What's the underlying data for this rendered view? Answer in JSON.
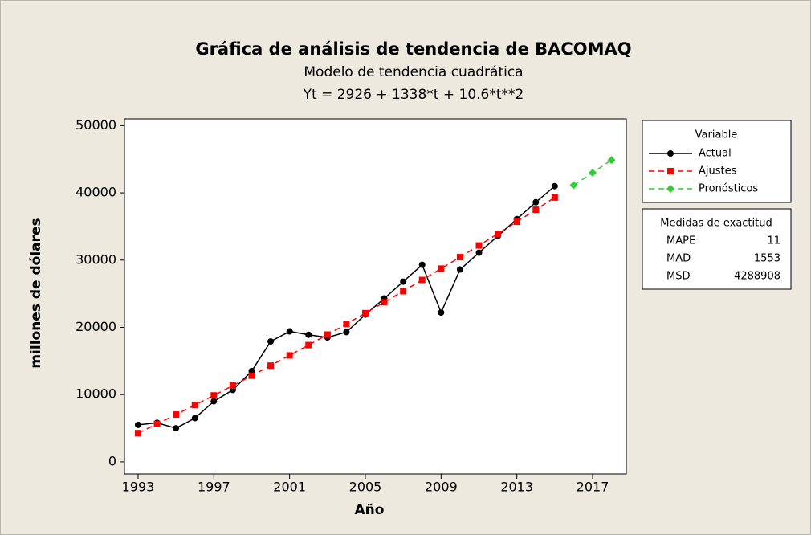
{
  "chart_data": {
    "type": "line",
    "title": "Gráfica de análisis de tendencia de BACOMAQ",
    "subtitle": "Modelo de tendencia cuadrática",
    "equation": "Yt = 2926 + 1338*t + 10.6*t**2",
    "xlabel": "Año",
    "ylabel": "millones de dólares",
    "xlim": [
      1992.28,
      2018.78
    ],
    "xticks": [
      1993,
      1997,
      2001,
      2005,
      2009,
      2013,
      2017
    ],
    "ylim": [
      -1800,
      51000
    ],
    "yticks": [
      0,
      10000,
      20000,
      30000,
      40000,
      50000
    ],
    "legend_title": "Variable",
    "legend_position": "right",
    "series": [
      {
        "name": "Actual",
        "color": "#000000",
        "marker": "circle",
        "line_style": "solid",
        "x": [
          1993,
          1994,
          1995,
          1996,
          1997,
          1998,
          1999,
          2000,
          2001,
          2002,
          2003,
          2004,
          2005,
          2006,
          2007,
          2008,
          2009,
          2010,
          2011,
          2012,
          2013,
          2014,
          2015
        ],
        "values": [
          5500,
          5800,
          5000,
          6500,
          9000,
          10700,
          13500,
          17900,
          19400,
          18900,
          18500,
          19300,
          21900,
          24300,
          26800,
          29300,
          22200,
          28600,
          31100,
          33600,
          36100,
          38600,
          41000
        ]
      },
      {
        "name": "Ajustes",
        "color": "#ff0000",
        "marker": "square",
        "line_style": "dashed",
        "x": [
          1993,
          1994,
          1995,
          1996,
          1997,
          1998,
          1999,
          2000,
          2001,
          2002,
          2003,
          2004,
          2005,
          2006,
          2007,
          2008,
          2009,
          2010,
          2011,
          2012,
          2013,
          2014,
          2015
        ],
        "values": [
          4275,
          5644,
          7035,
          8448,
          9881,
          11336,
          12811,
          14308,
          15827,
          17366,
          18927,
          20508,
          22111,
          23736,
          25381,
          27048,
          28735,
          30444,
          32175,
          33926,
          35699,
          37492,
          39307
        ]
      },
      {
        "name": "Pronósticos",
        "color": "#33cc33",
        "marker": "diamond",
        "line_style": "dashed",
        "x": [
          2016,
          2017,
          2018
        ],
        "values": [
          41144,
          43001,
          44880
        ]
      }
    ],
    "accuracy": {
      "title": "Medidas de exactitud",
      "rows": [
        [
          "MAPE",
          11
        ],
        [
          "MAD",
          1553
        ],
        [
          "MSD",
          4288908
        ]
      ]
    }
  }
}
